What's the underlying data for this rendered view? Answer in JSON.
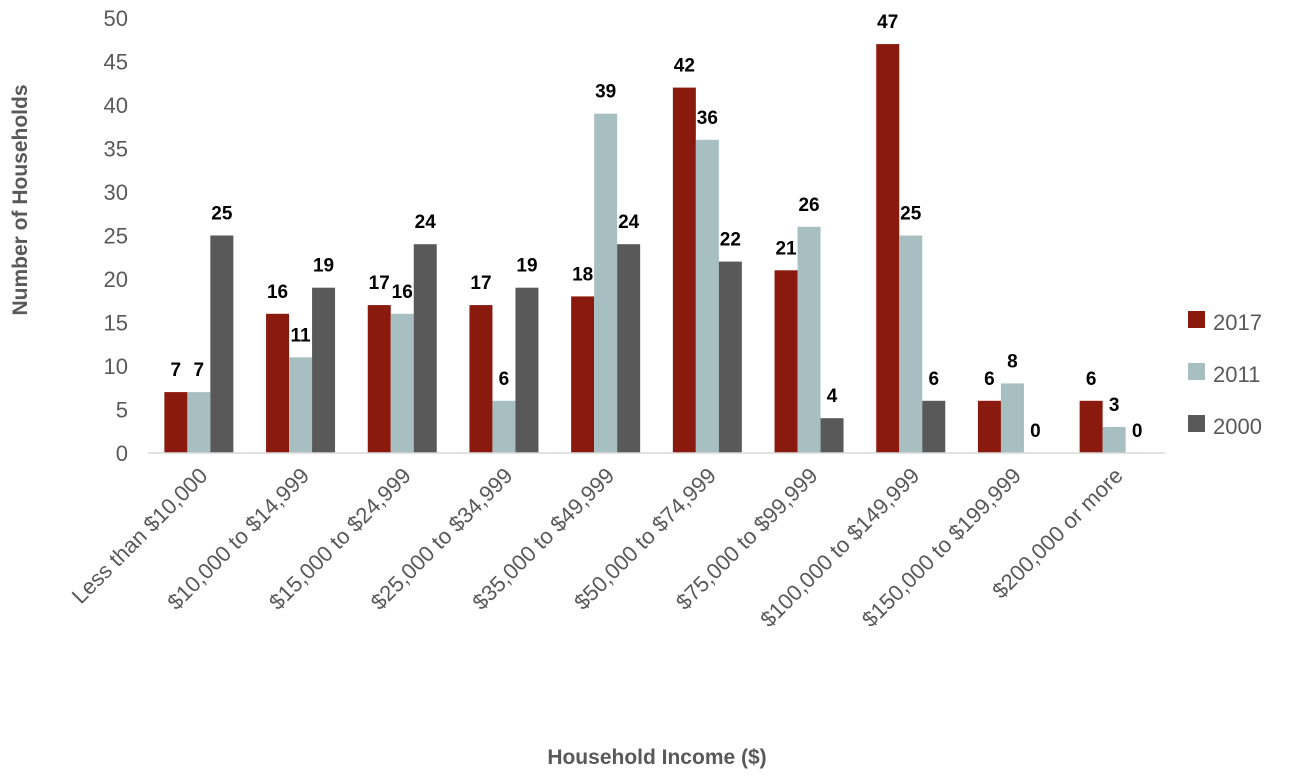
{
  "chart_data": {
    "type": "bar",
    "title": "",
    "xlabel": "Household Income ($)",
    "ylabel": "Number of Households",
    "ylim": [
      0,
      50
    ],
    "ytick_step": 5,
    "grid": false,
    "legend_position": "right",
    "categories": [
      "Less than $10,000",
      "$10,000 to $14,999",
      "$15,000 to $24,999",
      "$25,000 to $34,999",
      "$35,000 to $49,999",
      "$50,000 to $74,999",
      "$75,000 to $99,999",
      "$100,000 to $149,999",
      "$150,000 to $199,999",
      "$200,000 or more"
    ],
    "series": [
      {
        "name": "2017",
        "color": "#8b1a0e",
        "values": [
          7,
          16,
          17,
          17,
          18,
          42,
          21,
          47,
          6,
          6
        ]
      },
      {
        "name": "2011",
        "color": "#a8bfc2",
        "values": [
          7,
          11,
          16,
          6,
          39,
          36,
          26,
          25,
          8,
          3
        ]
      },
      {
        "name": "2000",
        "color": "#595959",
        "values": [
          25,
          19,
          24,
          19,
          24,
          22,
          4,
          6,
          0,
          0
        ]
      }
    ]
  }
}
